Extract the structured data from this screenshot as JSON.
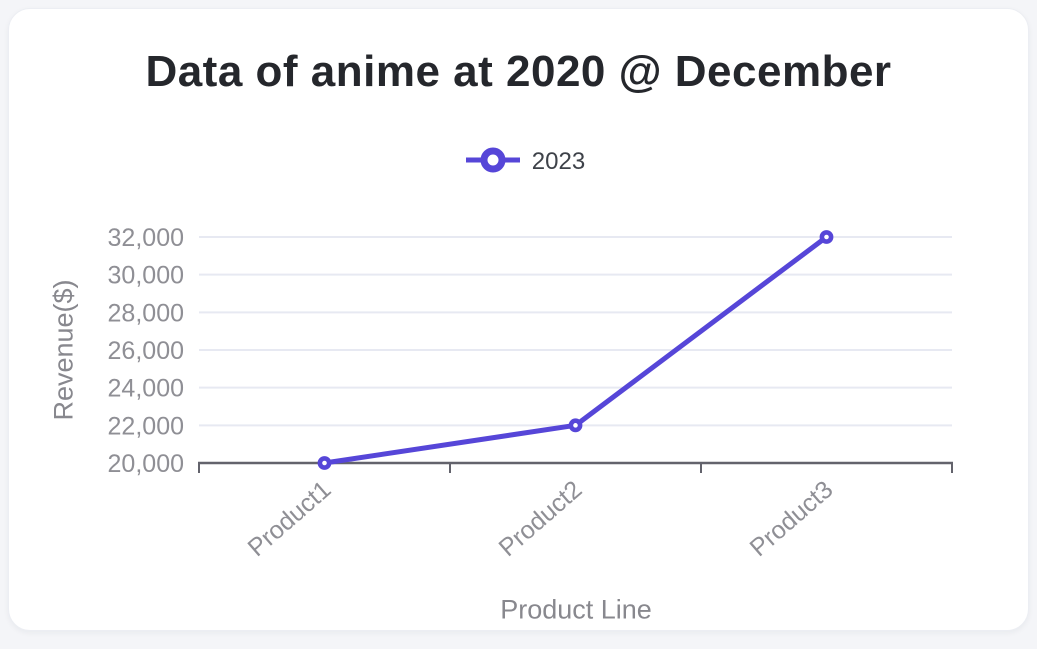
{
  "page": {
    "background_color": "#f4f5f8",
    "card_color": "#ffffff"
  },
  "chart_data": {
    "type": "line",
    "title": "Data of anime at 2020 @ December",
    "categories": [
      "Product1",
      "Product2",
      "Product3"
    ],
    "series": [
      {
        "name": "2023",
        "values": [
          20000,
          22000,
          32000
        ],
        "color": "#5646d8"
      }
    ],
    "xlabel": "Product Line",
    "ylabel": "Revenue($)",
    "ylim": [
      20000,
      32000
    ],
    "ytick_step": 2000,
    "ytick_labels": [
      "20,000",
      "22,000",
      "24,000",
      "26,000",
      "28,000",
      "30,000",
      "32,000"
    ],
    "grid": true,
    "legend_position": "top",
    "point_style": "hollow-circle",
    "colors": {
      "series_line": "#5646d8",
      "point_fill": "#ffffff",
      "gridline": "#e7e9f2",
      "axis_line": "#63636c",
      "tick_label": "#8f8f95",
      "axis_title": "#88888e",
      "chart_title": "#25272c",
      "legend_text": "#3e4249"
    }
  }
}
